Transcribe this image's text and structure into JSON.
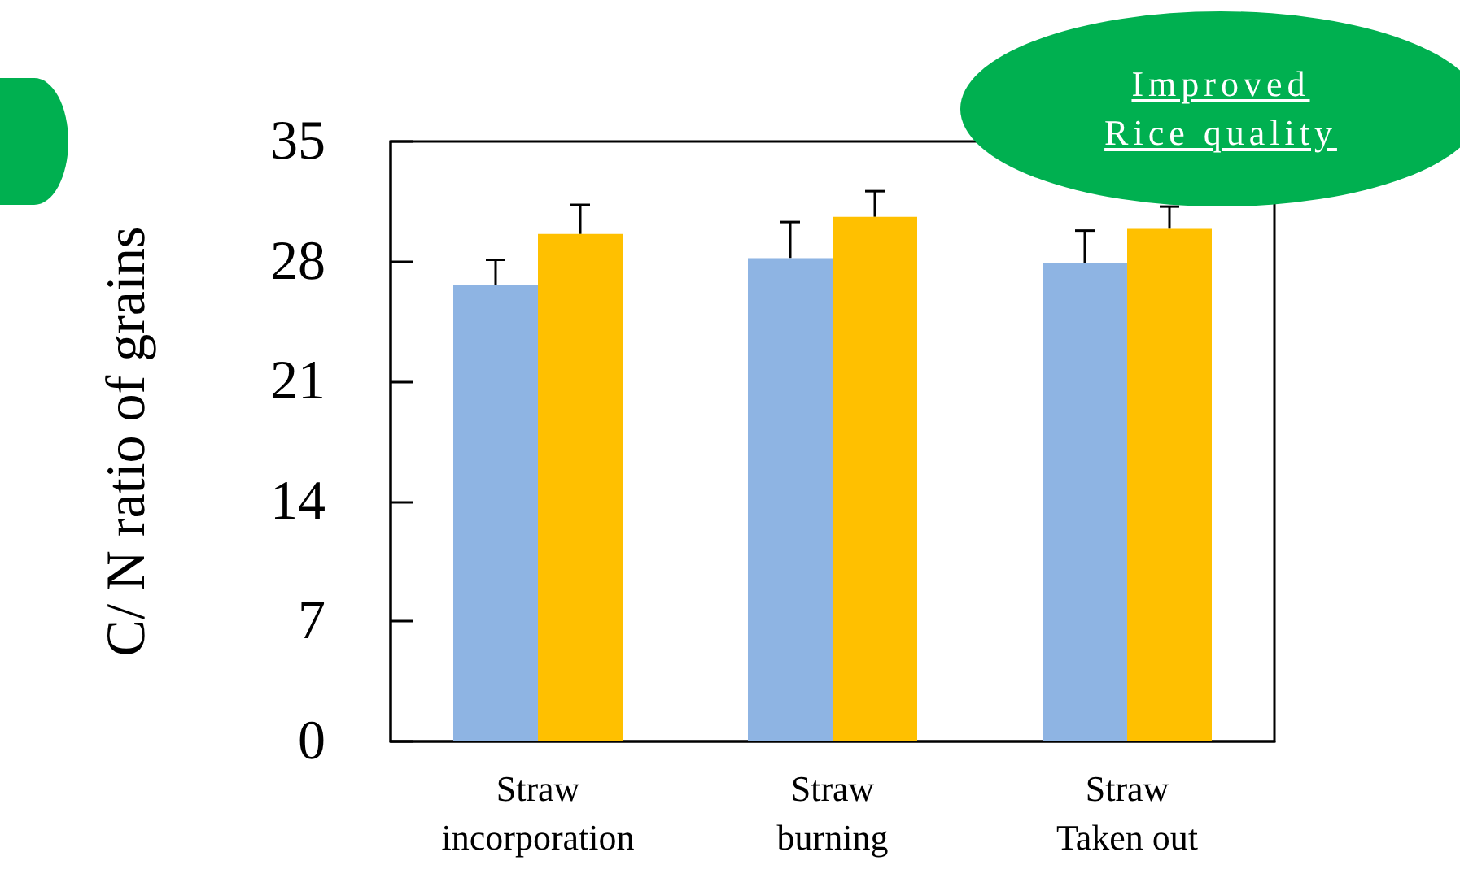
{
  "chart_data": {
    "type": "bar",
    "ylabel": "C/ N ratio of grains",
    "categories": [
      "Straw\nincorporation",
      "Straw\nburning",
      "Straw\nTaken out"
    ],
    "series": [
      {
        "color": "#8eb4e3",
        "values": [
          26.6,
          28.2,
          27.9
        ],
        "errors": [
          [
            26.6,
            28.1
          ],
          [
            28.2,
            30.3
          ],
          [
            27.9,
            29.8
          ]
        ]
      },
      {
        "color": "#ffc000",
        "values": [
          29.6,
          30.6,
          29.9
        ],
        "errors": [
          [
            29.6,
            31.3
          ],
          [
            30.6,
            32.1
          ],
          [
            29.9,
            31.2
          ]
        ]
      }
    ],
    "ylim": [
      0,
      35
    ],
    "yticks": [
      0,
      7,
      14,
      21,
      28,
      35
    ],
    "grid": false,
    "annotations": [
      "Improved\nRice quality"
    ]
  }
}
